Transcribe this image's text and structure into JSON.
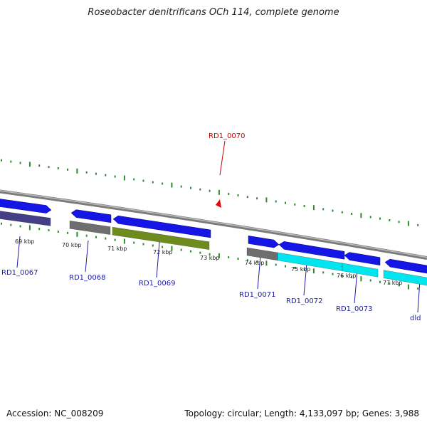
{
  "title": "Roseobacter denitrificans OCh 114, complete genome",
  "footer": {
    "accession": "Accession: NC_008209",
    "summary": "Topology: circular; Length: 4,133,097 bp; Genes: 3,988"
  },
  "colors": {
    "backbone": "#8a8a8a",
    "tick": "#2e8b2e",
    "gene_label": "#1a1aa8",
    "highlight_label": "#cc0000",
    "strand_forward": "#1515e6",
    "marker": "#e60000"
  },
  "scale_labels": [
    {
      "text": "69 kbp"
    },
    {
      "text": "70 kbp"
    },
    {
      "text": "71 kbp"
    },
    {
      "text": "72 kbp"
    },
    {
      "text": "73 kbp"
    },
    {
      "text": "74 kbp"
    },
    {
      "text": "75 kbp"
    },
    {
      "text": "76 kbp"
    },
    {
      "text": "77 kbp"
    }
  ],
  "gene_labels": [
    {
      "text": "RD1_0067",
      "highlight": false
    },
    {
      "text": "RD1_0068",
      "highlight": false
    },
    {
      "text": "RD1_0069",
      "highlight": false
    },
    {
      "text": "RD1_0070",
      "highlight": true
    },
    {
      "text": "RD1_0071",
      "highlight": false
    },
    {
      "text": "RD1_0072",
      "highlight": false
    },
    {
      "text": "RD1_0073",
      "highlight": false
    },
    {
      "text": "dld",
      "highlight": false
    }
  ],
  "category_colors": [
    "#443e86",
    "#6e6e6e",
    "#6e8c1e",
    "#00e5ee"
  ]
}
